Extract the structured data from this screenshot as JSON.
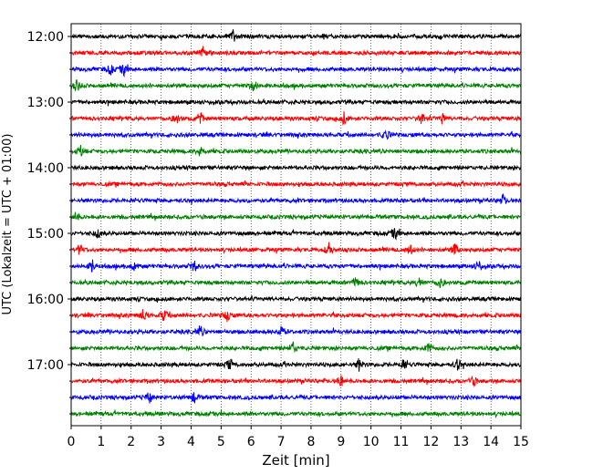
{
  "chart_data": {
    "type": "line",
    "xlabel": "Zeit  [min]",
    "ylabel": "UTC (Lokalzeit = UTC + 01:00)",
    "xlim": [
      0,
      15
    ],
    "x_ticks": [
      "0",
      "1",
      "2",
      "3",
      "4",
      "5",
      "6",
      "7",
      "8",
      "9",
      "10",
      "11",
      "12",
      "13",
      "14",
      "15"
    ],
    "y_tick_labels": [
      "12:00",
      "13:00",
      "14:00",
      "15:00",
      "16:00",
      "17:00"
    ],
    "trace_interval_min": 15,
    "start_time": "12:00",
    "trace_colors": [
      "#000000",
      "#ff0000",
      "#0000ff",
      "#008000"
    ],
    "grid": "vertical dotted",
    "trace_count": 24,
    "events": [
      [
        5.4
      ],
      [
        4.4
      ],
      [
        1.3,
        1.75
      ],
      [
        0.2,
        6.1
      ],
      [],
      [
        3.5,
        4.3,
        9.1,
        11.7,
        12.4
      ],
      [
        10.5
      ],
      [
        0.3,
        4.3
      ],
      [],
      [],
      [
        14.4
      ],
      [
        0.15
      ],
      [
        0.9,
        10.8
      ],
      [
        0.3,
        8.6,
        11.3,
        12.8
      ],
      [
        0.7,
        2.1,
        4.1,
        13.6
      ],
      [
        9.5,
        11.6,
        12.3
      ],
      [],
      [
        2.4,
        3.1,
        5.2
      ],
      [
        4.3,
        7.0
      ],
      [
        7.4,
        11.9
      ],
      [
        5.3,
        9.6,
        11.1,
        12.9
      ],
      [
        9.0,
        13.4
      ],
      [
        2.6,
        4.1
      ],
      []
    ]
  }
}
